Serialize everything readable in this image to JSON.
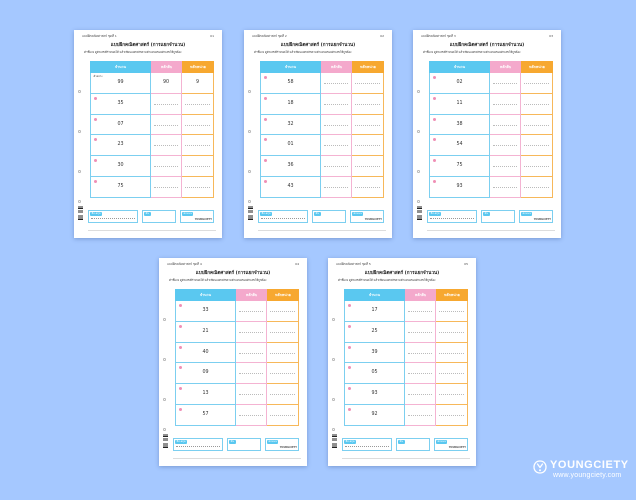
{
  "brand": {
    "name": "YOUNGCIETY",
    "url": "www.youngciety.com",
    "color": "#ffffff"
  },
  "colors": {
    "background": "#a5c8ff",
    "col_number": "#5ac8f0",
    "col_tens": "#f4a9cc",
    "col_units": "#f7a830"
  },
  "headers": [
    "จำนวน",
    "หลักสิบ",
    "หลักหน่วย"
  ],
  "title": "แบบฝึกคณิตศาสตร์ (การแยกจำนวน)",
  "instruction": "คำชี้แจง ดูตัวเลขที่กำหนดให้ แล้วเขียนแยกหลักตามตำแหน่งของตัวเลขให้ถูกต้อง",
  "example_label": "ตัวอย่าง",
  "footer": {
    "tag1": "ชื่อ-สกุล",
    "tag2": "ชั้น",
    "tag3": "เลขที่",
    "tag4": "คะแนน"
  },
  "sheets": [
    {
      "header_label": "แบบฝึกคณิตศาสตร์ ชุดที่ 1",
      "page": "01",
      "numbers": [
        "99",
        "35",
        "07",
        "23",
        "30",
        "75"
      ],
      "example_tens": "90",
      "example_units": "9"
    },
    {
      "header_label": "แบบฝึกคณิตศาสตร์ ชุดที่ 2",
      "page": "02",
      "numbers": [
        "58",
        "18",
        "32",
        "01",
        "36",
        "43"
      ]
    },
    {
      "header_label": "แบบฝึกคณิตศาสตร์ ชุดที่ 3",
      "page": "03",
      "numbers": [
        "02",
        "11",
        "38",
        "54",
        "75",
        "93"
      ]
    },
    {
      "header_label": "แบบฝึกคณิตศาสตร์ ชุดที่ 4",
      "page": "04",
      "numbers": [
        "33",
        "21",
        "40",
        "09",
        "13",
        "57"
      ]
    },
    {
      "header_label": "แบบฝึกคณิตศาสตร์ ชุดที่ 5",
      "page": "05",
      "numbers": [
        "17",
        "25",
        "39",
        "05",
        "93",
        "92"
      ]
    }
  ]
}
